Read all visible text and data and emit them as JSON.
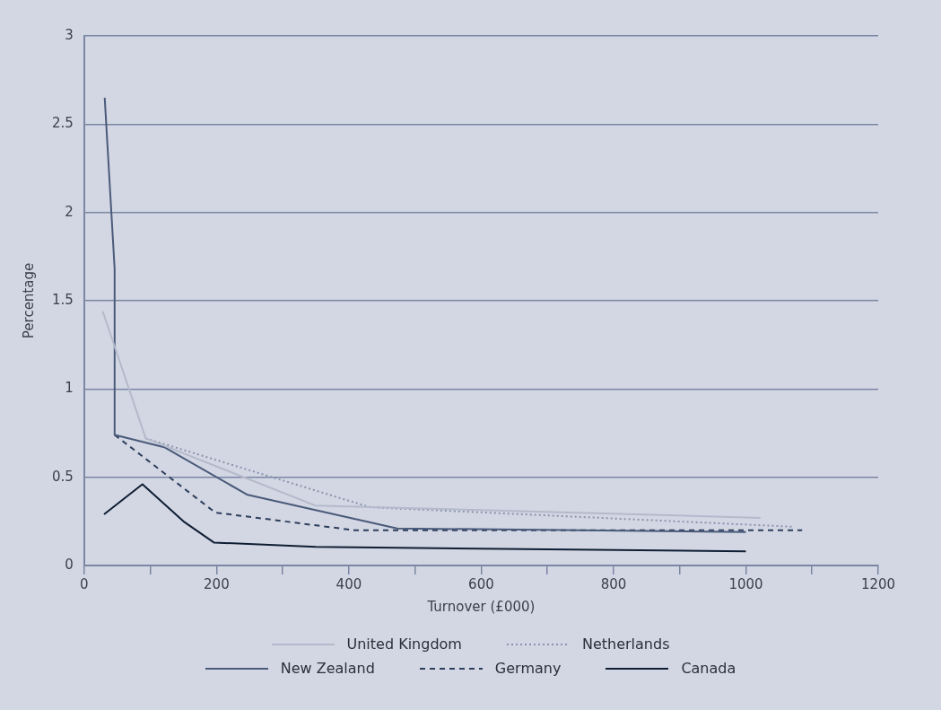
{
  "chart_data": {
    "type": "line",
    "xlabel": "Turnover (£000)",
    "ylabel": "Percentage",
    "xlim": [
      0,
      1200
    ],
    "xticks": [
      0,
      {
        "value": 100,
        "label": null
      },
      200,
      {
        "value": 300,
        "label": null
      },
      400,
      {
        "value": 500,
        "label": null
      },
      600,
      {
        "value": 700,
        "label": null
      },
      800,
      {
        "value": 900,
        "label": null
      },
      1000,
      {
        "value": 1100,
        "label": null
      },
      1200
    ],
    "ylim": [
      0,
      3
    ],
    "yticks": [
      0,
      0.5,
      1,
      1.5,
      2,
      2.5,
      3
    ],
    "grid": "y",
    "legend": "bottom",
    "marker": "none",
    "series": [
      {
        "name": "United Kingdom",
        "color": "#b4bacb",
        "line_style": "solid",
        "x": [
          28,
          93,
          349,
          1022
        ],
        "values": [
          1.44,
          0.72,
          0.34,
          0.27
        ]
      },
      {
        "name": "Netherlands",
        "color": "#8a93ad",
        "line_style": "dotted",
        "x": [
          93,
          432,
          1069
        ],
        "values": [
          0.72,
          0.33,
          0.22
        ]
      },
      {
        "name": "New Zealand",
        "color": "#4a5a7a",
        "line_style": "solid",
        "x": [
          31,
          46,
          46,
          121,
          247,
          473,
          1000
        ],
        "values": [
          2.65,
          1.68,
          0.74,
          0.67,
          0.4,
          0.21,
          0.19
        ]
      },
      {
        "name": "Germany",
        "color": "#2d3e5c",
        "line_style": "dashed",
        "x": [
          46,
          198,
          408,
          1085
        ],
        "values": [
          0.74,
          0.3,
          0.2,
          0.2
        ]
      },
      {
        "name": "Canada",
        "color": "#0f1e33",
        "line_style": "solid",
        "x": [
          30,
          88,
          150,
          196,
          350,
          1000
        ],
        "values": [
          0.29,
          0.46,
          0.25,
          0.13,
          0.105,
          0.08
        ]
      }
    ]
  }
}
